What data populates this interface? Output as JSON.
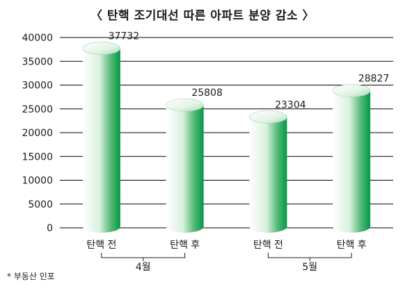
{
  "chart_data": {
    "type": "bar",
    "title": "〈 탄핵 조기대선 따른 아파트 분양 감소 〉",
    "categories": [
      "탄핵 전",
      "탄핵 후",
      "탄핵 전",
      "탄핵 후"
    ],
    "values": [
      37732,
      25808,
      23304,
      28827
    ],
    "groups": [
      {
        "label": "4월",
        "categories": [
          0,
          1
        ]
      },
      {
        "label": "5월",
        "categories": [
          2,
          3
        ]
      }
    ],
    "ylim": [
      0,
      40000
    ],
    "yticks": [
      0,
      5000,
      10000,
      15000,
      20000,
      25000,
      30000,
      35000,
      40000
    ],
    "grid": true,
    "bar_style": "3d-cylinder",
    "colors": {
      "bar_light": "#ffffff",
      "bar_dark": "#009a44",
      "grid": "#000000"
    },
    "xlabel": "",
    "ylabel": ""
  },
  "source_note": "* 부동산 인포"
}
